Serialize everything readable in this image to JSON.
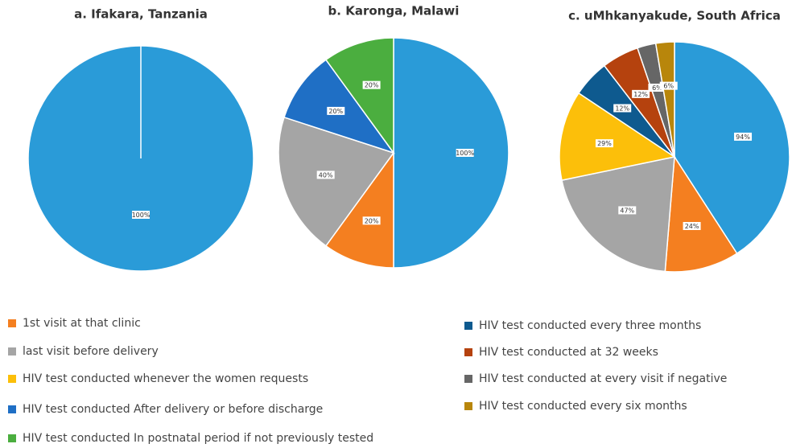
{
  "chart_data": [
    {
      "type": "pie",
      "title": "a. Ifakara, Tanzania",
      "values": [
        100
      ],
      "value_labels": [
        "100%"
      ],
      "colors": [
        "#2a9bd8"
      ]
    },
    {
      "type": "pie",
      "title": "b. Karonga, Malawi",
      "values": [
        100,
        20,
        40,
        20,
        20
      ],
      "value_labels": [
        "100%",
        "20%",
        "40%",
        "20%",
        "20%"
      ],
      "colors": [
        "#2a9bd8",
        "#f47f20",
        "#a5a5a5",
        "#1f6fc5",
        "#4bae3f"
      ]
    },
    {
      "type": "pie",
      "title": "c. uMhkanyakude, South Africa",
      "values": [
        94,
        24,
        47,
        29,
        12,
        12,
        6,
        6
      ],
      "value_labels": [
        "94%",
        "24%",
        "47%",
        "29%",
        "12%",
        "12%",
        "6%",
        "6%"
      ],
      "colors": [
        "#2a9bd8",
        "#f47f20",
        "#a5a5a5",
        "#fcbf0a",
        "#0e5a8f",
        "#b5420e",
        "#666666",
        "#b8860b"
      ]
    }
  ],
  "legend": {
    "items": [
      {
        "name": "1st visit at that clinic",
        "color": "#f47f20"
      },
      {
        "name": "last visit before delivery",
        "color": "#a5a5a5"
      },
      {
        "name": "HIV test conducted whenever the women requests",
        "color": "#fcbf0a"
      },
      {
        "name": "HIV test conducted After delivery or before discharge",
        "color": "#1f6fc5"
      },
      {
        "name": "HIV test conducted In postnatal period if not previously tested",
        "color": "#4bae3f"
      },
      {
        "name": "HIV test conducted every three months",
        "color": "#0e5a8f"
      },
      {
        "name": "HIV test conducted at 32 weeks",
        "color": "#b5420e"
      },
      {
        "name": "HIV test conducted at every visit if negative",
        "color": "#666666"
      },
      {
        "name": "HIV test conducted every six months",
        "color": "#b8860b"
      }
    ]
  }
}
